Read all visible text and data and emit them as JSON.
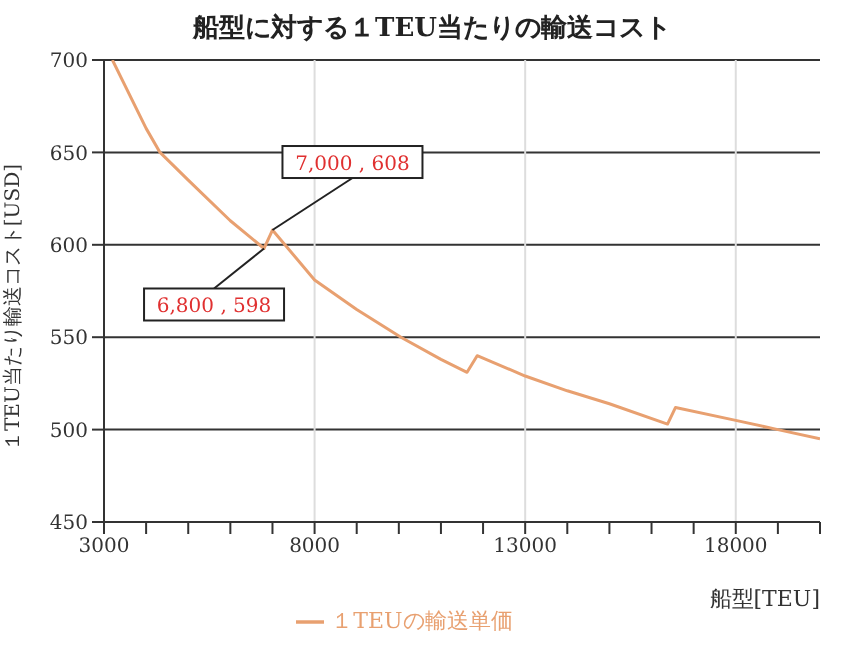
{
  "chart_data": {
    "type": "line",
    "title": "船型に対する１TEU当たりの輸送コスト",
    "xlabel": "船型[TEU]",
    "ylabel": "１TEU当たり輸送コスト[USD]",
    "x": [
      3200,
      4000,
      4330,
      5000,
      6000,
      6800,
      7000,
      8000,
      9000,
      10050,
      11000,
      11620,
      11860,
      13000,
      14000,
      15000,
      16380,
      16570,
      18000,
      19000,
      20000
    ],
    "series": [
      {
        "name": "１TEUの輸送単価",
        "color": "#e8a070",
        "values": [
          700,
          663,
          650,
          635,
          613,
          598,
          608,
          581,
          565,
          550,
          538,
          531,
          540,
          529,
          521,
          514,
          503,
          512,
          505,
          500,
          495
        ]
      }
    ],
    "xlim": [
      3000,
      20000
    ],
    "xticks": [
      3000,
      {
        "value": 4000,
        "label": null
      },
      {
        "value": 5000,
        "label": null
      },
      {
        "value": 6000,
        "label": null
      },
      {
        "value": 7000,
        "label": null
      },
      8000,
      {
        "value": 9000,
        "label": null
      },
      {
        "value": 10000,
        "label": null
      },
      {
        "value": 11000,
        "label": null
      },
      {
        "value": 12000,
        "label": null
      },
      13000,
      {
        "value": 14000,
        "label": null
      },
      {
        "value": 15000,
        "label": null
      },
      {
        "value": 16000,
        "label": null
      },
      {
        "value": 17000,
        "label": null
      },
      18000,
      {
        "value": 19000,
        "label": null
      },
      {
        "value": 20000,
        "label": null
      }
    ],
    "ylim": [
      450,
      700
    ],
    "yticks": [
      450,
      500,
      550,
      600,
      650,
      700
    ],
    "annotations": [
      {
        "text": "7,000 , 608",
        "x": 7000,
        "y": 608
      },
      {
        "text": "6,800 , 598",
        "x": 6800,
        "y": 598
      }
    ],
    "grid": true,
    "legend": "bottom",
    "marker": "none",
    "line_style": "solid"
  }
}
